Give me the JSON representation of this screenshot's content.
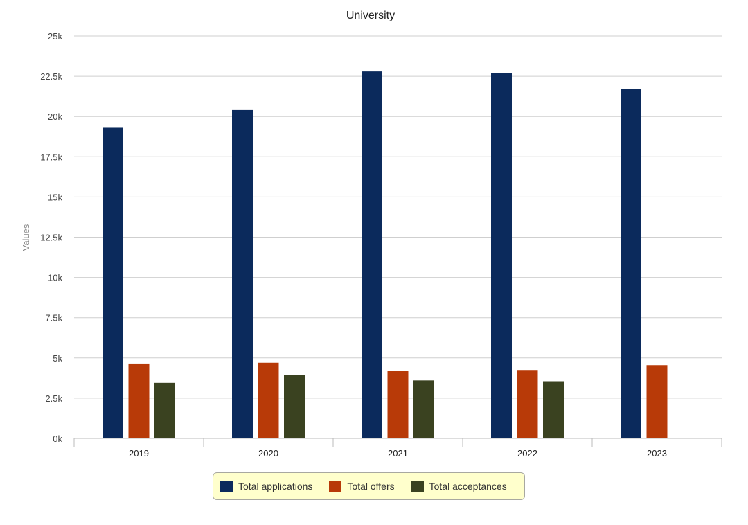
{
  "chart_data": {
    "type": "bar",
    "title": "University",
    "xlabel": "",
    "ylabel": "Values",
    "categories": [
      "2019",
      "2020",
      "2021",
      "2022",
      "2023"
    ],
    "series": [
      {
        "name": "Total applications",
        "color": "#0b2a5c",
        "values": [
          19300,
          20400,
          22800,
          22700,
          21700
        ]
      },
      {
        "name": "Total offers",
        "color": "#b83a08",
        "values": [
          4650,
          4700,
          4200,
          4250,
          4550
        ]
      },
      {
        "name": "Total acceptances",
        "color": "#3a4220",
        "values": [
          3450,
          3950,
          3600,
          3550,
          null
        ]
      }
    ],
    "ylim": [
      0,
      25000
    ],
    "yticks": [
      0,
      2500,
      5000,
      7500,
      10000,
      12500,
      15000,
      17500,
      20000,
      22500,
      25000
    ],
    "ytick_labels": [
      "0k",
      "2.5k",
      "5k",
      "7.5k",
      "10k",
      "12.5k",
      "15k",
      "17.5k",
      "20k",
      "22.5k",
      "25k"
    ],
    "grid": true,
    "legend_position": "bottom"
  }
}
